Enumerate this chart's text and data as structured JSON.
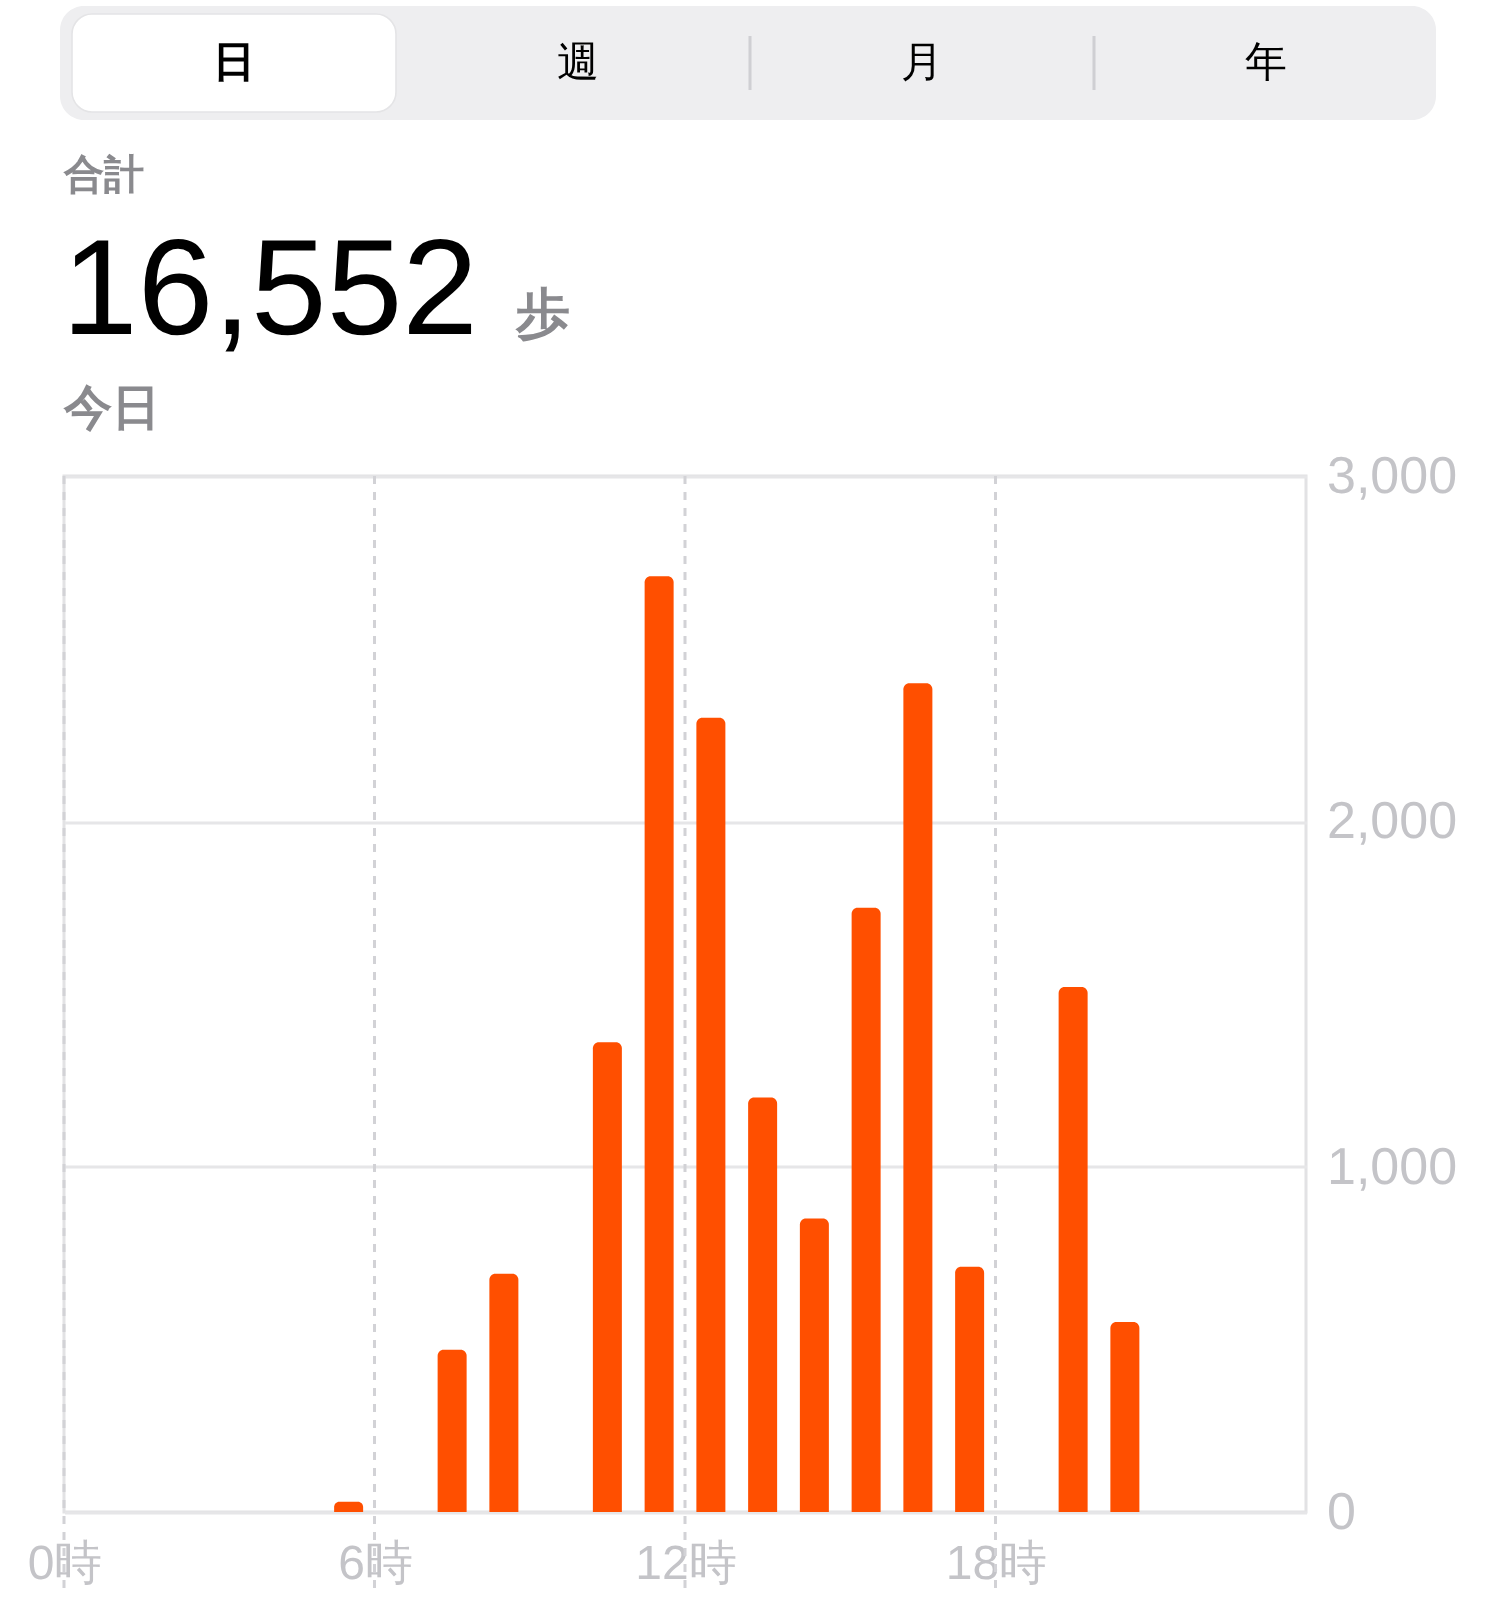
{
  "chart_data": {
    "type": "bar",
    "title": "16,552",
    "annotations": [
      "日",
      "週",
      "月",
      "年",
      "合計",
      "歩",
      "今日"
    ],
    "x": [
      5.5,
      7.5,
      8.5,
      10.5,
      11.5,
      12.5,
      13.5,
      14.5,
      15.5,
      16.5,
      17.5,
      19.5,
      20.5
    ],
    "values": [
      30,
      470,
      690,
      1360,
      2710,
      2300,
      1200,
      850,
      1750,
      2400,
      710,
      1520,
      550
    ],
    "color": "#ff4f00",
    "xlim": [
      0,
      24
    ],
    "xticks": [
      {
        "value": 0,
        "label": "0時"
      },
      {
        "value": 6,
        "label": "6時"
      },
      {
        "value": 12,
        "label": "12時"
      },
      {
        "value": 18,
        "label": "18時"
      }
    ],
    "ylim": [
      0,
      3000
    ],
    "yticks": [
      0,
      {
        "value": 1000,
        "label": "1,000"
      },
      {
        "value": 2000,
        "label": "2,000"
      },
      {
        "value": 3000,
        "label": "3,000"
      }
    ],
    "grid": true
  }
}
